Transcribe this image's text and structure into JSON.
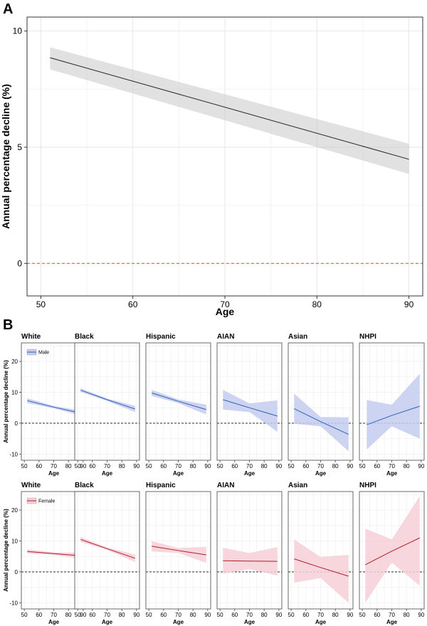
{
  "panels": {
    "a_label": "A",
    "b_label": "B"
  },
  "chart_data": [
    {
      "type": "line",
      "panel": "A",
      "xlabel": "Age",
      "ylabel": "Annual percentage decline (%)",
      "xlim": [
        48.5,
        91.5
      ],
      "ylim": [
        -1.4,
        10.6
      ],
      "xticks": [
        50,
        60,
        70,
        80,
        90
      ],
      "yticks": [
        0,
        5,
        10
      ],
      "reference_line": 0,
      "grid": true,
      "series": [
        {
          "x": [
            51,
            90
          ],
          "y": [
            8.85,
            4.48
          ],
          "ci_lower": [
            8.35,
            3.85
          ],
          "ci_upper": [
            9.3,
            5.15
          ]
        }
      ]
    },
    {
      "type": "line",
      "panel": "B",
      "xlabel": "Age",
      "ylabel": "Annual percentage decline (%)",
      "xlim": [
        48,
        92
      ],
      "ylim": [
        -12,
        26
      ],
      "xticks": [
        50,
        60,
        70,
        80,
        90
      ],
      "yticks": [
        -10,
        0,
        10,
        20
      ],
      "reference_line": 0,
      "groups": [
        "White",
        "Black",
        "Hispanic",
        "AIAN",
        "Asian",
        "NHPI"
      ],
      "rows": [
        {
          "legend": "Male",
          "color": "#2e5fb6",
          "fill": "#c4cdee",
          "facets": [
            {
              "x": [
                52,
                70,
                89
              ],
              "y": [
                7.3,
                5.2,
                3.2
              ],
              "lower": [
                6.5,
                4.8,
                2.4
              ],
              "upper": [
                8.1,
                5.6,
                4.0
              ]
            },
            {
              "x": [
                52,
                70,
                89
              ],
              "y": [
                10.7,
                7.6,
                4.6
              ],
              "lower": [
                10.1,
                7.2,
                3.6
              ],
              "upper": [
                11.3,
                8.0,
                5.6
              ]
            },
            {
              "x": [
                52,
                70,
                89
              ],
              "y": [
                9.8,
                7.1,
                4.4
              ],
              "lower": [
                8.8,
                6.5,
                2.8
              ],
              "upper": [
                10.8,
                7.7,
                6.0
              ]
            },
            {
              "x": [
                52,
                70,
                89
              ],
              "y": [
                7.6,
                5.0,
                2.3
              ],
              "lower": [
                4.4,
                3.6,
                -2.8
              ],
              "upper": [
                10.8,
                6.4,
                7.4
              ]
            },
            {
              "x": [
                52,
                70,
                89
              ],
              "y": [
                4.7,
                0.5,
                -3.6
              ],
              "lower": [
                -0.2,
                -1.0,
                -9.1
              ],
              "upper": [
                9.6,
                2.0,
                1.9
              ]
            },
            {
              "x": [
                53,
                70,
                89
              ],
              "y": [
                -0.5,
                2.5,
                5.5
              ],
              "lower": [
                -8.5,
                -1.0,
                -5.0
              ],
              "upper": [
                7.5,
                6.0,
                16.0
              ]
            }
          ]
        },
        {
          "legend": "Female",
          "color": "#b11b27",
          "fill": "#f7cfd7",
          "facets": [
            {
              "x": [
                52,
                70,
                89
              ],
              "y": [
                6.6,
                5.9,
                5.2
              ],
              "lower": [
                5.9,
                5.5,
                4.2
              ],
              "upper": [
                7.3,
                6.3,
                6.2
              ]
            },
            {
              "x": [
                52,
                70,
                89
              ],
              "y": [
                10.5,
                7.5,
                4.4
              ],
              "lower": [
                9.7,
                7.1,
                3.2
              ],
              "upper": [
                11.3,
                7.9,
                5.6
              ]
            },
            {
              "x": [
                52,
                70,
                89
              ],
              "y": [
                8.3,
                6.9,
                5.5
              ],
              "lower": [
                6.6,
                6.1,
                2.9
              ],
              "upper": [
                10.0,
                7.7,
                8.1
              ]
            },
            {
              "x": [
                52,
                70,
                89
              ],
              "y": [
                3.6,
                3.5,
                3.4
              ],
              "lower": [
                -0.6,
                0.9,
                -1.2
              ],
              "upper": [
                7.8,
                6.1,
                8.0
              ]
            },
            {
              "x": [
                52,
                70,
                89
              ],
              "y": [
                4.2,
                1.4,
                -1.4
              ],
              "lower": [
                -3.5,
                -2.0,
                -10.0
              ],
              "upper": [
                10.5,
                4.8,
                5.5
              ]
            },
            {
              "x": [
                52,
                70,
                89
              ],
              "y": [
                2.3,
                6.7,
                11.0
              ],
              "lower": [
                -10.0,
                3.0,
                -4.5
              ],
              "upper": [
                14.0,
                10.5,
                24.5
              ]
            }
          ]
        }
      ]
    }
  ]
}
